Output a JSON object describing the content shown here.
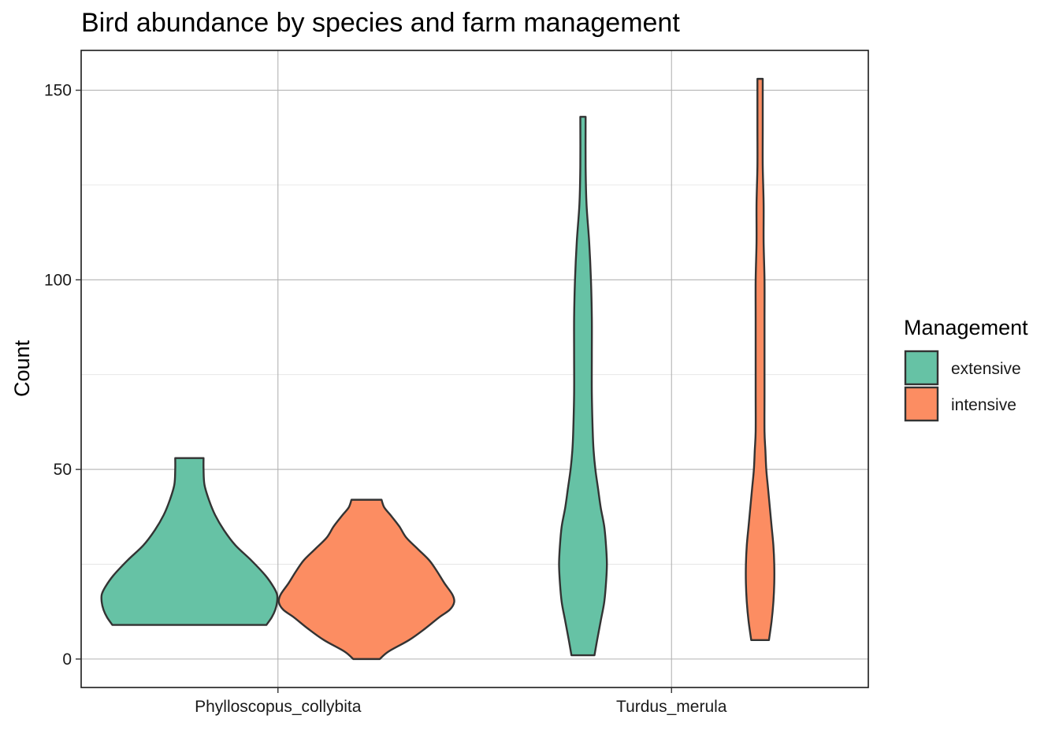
{
  "chart_data": {
    "type": "violin",
    "title": "Bird abundance by species and farm management",
    "xlabel": "",
    "ylabel": "Count",
    "ylim": [
      -7.5,
      160.5
    ],
    "yticks": [
      0,
      50,
      100,
      150
    ],
    "grid": true,
    "categories": [
      "Phylloscopus_collybita",
      "Turdus_merula"
    ],
    "legend": {
      "title": "Management",
      "position": "right",
      "entries": [
        {
          "name": "extensive",
          "color": "#66c2a5"
        },
        {
          "name": "intensive",
          "color": "#fc8d62"
        }
      ]
    },
    "series": [
      {
        "name": "extensive",
        "color": "#66c2a5",
        "violins": [
          {
            "category": "Phylloscopus_collybita",
            "min": 9,
            "max": 53,
            "density_profile": [
              [
                9,
                0.87
              ],
              [
                11,
                0.93
              ],
              [
                13,
                0.97
              ],
              [
                15,
                0.99
              ],
              [
                17,
                0.99
              ],
              [
                19,
                0.95
              ],
              [
                22,
                0.86
              ],
              [
                26,
                0.7
              ],
              [
                30,
                0.52
              ],
              [
                34,
                0.39
              ],
              [
                38,
                0.29
              ],
              [
                42,
                0.22
              ],
              [
                46,
                0.17
              ],
              [
                50,
                0.16
              ],
              [
                53,
                0.16
              ]
            ]
          },
          {
            "category": "Turdus_merula",
            "min": 1,
            "max": 143,
            "density_profile": [
              [
                1,
                0.13
              ],
              [
                5,
                0.16
              ],
              [
                10,
                0.2
              ],
              [
                15,
                0.24
              ],
              [
                20,
                0.26
              ],
              [
                25,
                0.27
              ],
              [
                30,
                0.26
              ],
              [
                35,
                0.24
              ],
              [
                40,
                0.2
              ],
              [
                45,
                0.17
              ],
              [
                50,
                0.14
              ],
              [
                55,
                0.12
              ],
              [
                60,
                0.11
              ],
              [
                70,
                0.1
              ],
              [
                80,
                0.1
              ],
              [
                90,
                0.1
              ],
              [
                100,
                0.09
              ],
              [
                110,
                0.07
              ],
              [
                120,
                0.04
              ],
              [
                130,
                0.03
              ],
              [
                143,
                0.03
              ]
            ]
          }
        ]
      },
      {
        "name": "intensive",
        "color": "#fc8d62",
        "violins": [
          {
            "category": "Phylloscopus_collybita",
            "min": 0,
            "max": 42,
            "density_profile": [
              [
                0,
                0.15
              ],
              [
                2,
                0.25
              ],
              [
                5,
                0.48
              ],
              [
                8,
                0.66
              ],
              [
                11,
                0.82
              ],
              [
                13,
                0.94
              ],
              [
                15,
                0.99
              ],
              [
                17,
                0.97
              ],
              [
                20,
                0.88
              ],
              [
                23,
                0.8
              ],
              [
                26,
                0.71
              ],
              [
                29,
                0.58
              ],
              [
                32,
                0.45
              ],
              [
                35,
                0.37
              ],
              [
                38,
                0.27
              ],
              [
                40,
                0.2
              ],
              [
                42,
                0.17
              ]
            ]
          },
          {
            "category": "Turdus_merula",
            "min": 5,
            "max": 153,
            "density_profile": [
              [
                5,
                0.1
              ],
              [
                10,
                0.13
              ],
              [
                15,
                0.15
              ],
              [
                20,
                0.16
              ],
              [
                25,
                0.16
              ],
              [
                30,
                0.15
              ],
              [
                35,
                0.13
              ],
              [
                40,
                0.11
              ],
              [
                45,
                0.09
              ],
              [
                50,
                0.07
              ],
              [
                55,
                0.06
              ],
              [
                60,
                0.05
              ],
              [
                70,
                0.05
              ],
              [
                80,
                0.05
              ],
              [
                90,
                0.05
              ],
              [
                100,
                0.05
              ],
              [
                110,
                0.04
              ],
              [
                120,
                0.04
              ],
              [
                130,
                0.03
              ],
              [
                140,
                0.03
              ],
              [
                153,
                0.03
              ]
            ]
          }
        ]
      }
    ]
  }
}
